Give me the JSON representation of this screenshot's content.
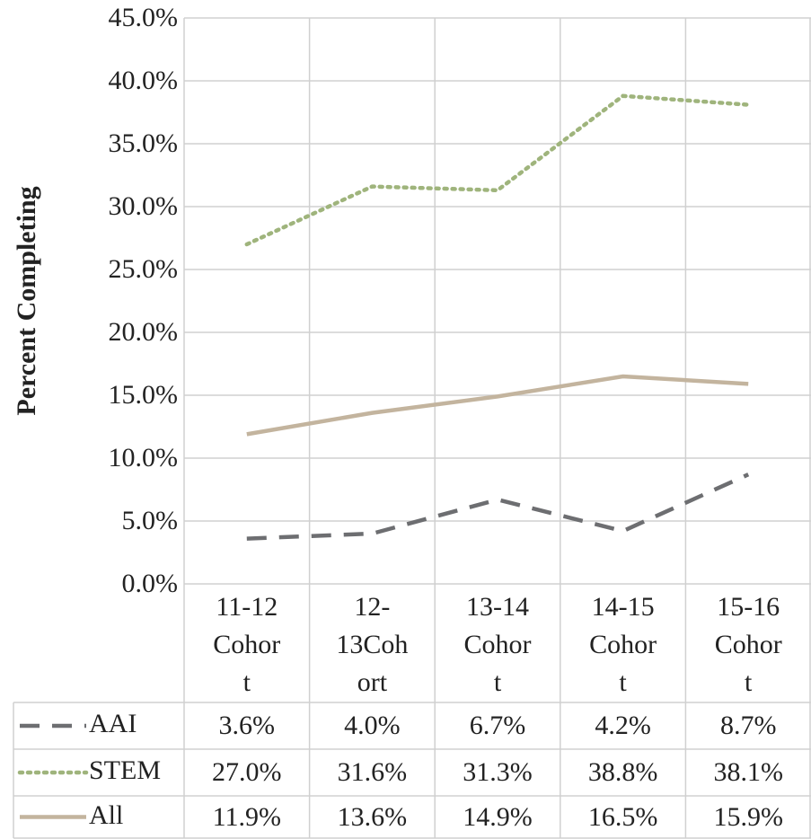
{
  "chart_data": {
    "type": "line",
    "y_label": "Percent Completing",
    "categories": [
      "11-12 Cohort",
      "12-13Cohort",
      "13-14 Cohort",
      "14-15 Cohort",
      "15-16 Cohort"
    ],
    "series": [
      {
        "name": "AAI",
        "color": "#6d6e71",
        "dash": "dashed",
        "values": [
          3.6,
          4.0,
          6.7,
          4.2,
          8.7
        ],
        "value_labels": [
          "3.6%",
          "4.0%",
          "6.7%",
          "4.2%",
          "8.7%"
        ]
      },
      {
        "name": "STEM",
        "color": "#9fb47c",
        "dash": "dotted",
        "values": [
          27.0,
          31.6,
          31.3,
          38.8,
          38.1
        ],
        "value_labels": [
          "27.0%",
          "31.6%",
          "31.3%",
          "38.8%",
          "38.1%"
        ]
      },
      {
        "name": "All",
        "color": "#c3b49e",
        "dash": "solid",
        "values": [
          11.9,
          13.6,
          14.9,
          16.5,
          15.9
        ],
        "value_labels": [
          "11.9%",
          "13.6%",
          "14.9%",
          "16.5%",
          "15.9%"
        ]
      }
    ],
    "ylim": [
      0,
      45
    ],
    "yticks": [
      {
        "value": 0,
        "label": "0.0%"
      },
      {
        "value": 5,
        "label": "5.0%"
      },
      {
        "value": 10,
        "label": "10.0%"
      },
      {
        "value": 15,
        "label": "15.0%"
      },
      {
        "value": 20,
        "label": "20.0%"
      },
      {
        "value": 25,
        "label": "25.0%"
      },
      {
        "value": 30,
        "label": "30.0%"
      },
      {
        "value": 35,
        "label": "35.0%"
      },
      {
        "value": 40,
        "label": "40.0%"
      },
      {
        "value": 45,
        "label": "45.0%"
      }
    ],
    "grid": true
  }
}
